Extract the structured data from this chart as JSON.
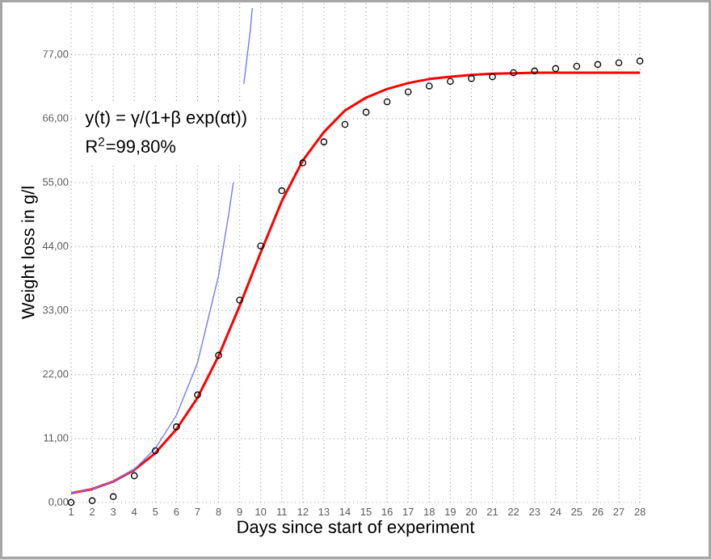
{
  "chart_data": {
    "type": "scatter",
    "xlabel": "Days since start of experiment",
    "ylabel": "Weight loss in g/l",
    "annotations": [
      "y(t) = γ/(1+β exp(αt))",
      "R$^{2}$=99,80%"
    ],
    "series": [
      {
        "type": "scatter",
        "color": "#000000",
        "marker": "circle",
        "x": [
          1,
          2,
          3,
          4,
          5,
          6,
          7,
          8,
          9,
          10,
          11,
          12,
          13,
          14,
          15,
          16,
          17,
          18,
          19,
          20,
          21,
          22,
          23,
          24,
          25,
          26,
          27,
          28
        ],
        "values": [
          0.0,
          0.3,
          1.0,
          4.6,
          8.9,
          13.0,
          18.5,
          25.3,
          34.8,
          44.1,
          53.6,
          58.4,
          62.0,
          65.0,
          67.1,
          68.9,
          70.6,
          71.6,
          72.4,
          72.9,
          73.2,
          73.9,
          74.2,
          74.6,
          75.0,
          75.3,
          75.6,
          75.9
        ]
      },
      {
        "type": "line",
        "color": "#ff0000",
        "x": [
          1,
          2,
          3,
          4,
          5,
          6,
          7,
          8,
          9,
          10,
          11,
          12,
          13,
          14,
          15,
          16,
          17,
          18,
          19,
          20,
          21,
          22,
          23,
          24,
          25,
          26,
          27,
          28
        ],
        "values": [
          1.6,
          2.3,
          3.6,
          5.6,
          8.5,
          12.6,
          18.0,
          25.2,
          33.8,
          43.0,
          51.8,
          58.8,
          63.7,
          67.4,
          69.6,
          71.1,
          72.1,
          72.8,
          73.2,
          73.5,
          73.7,
          73.8,
          73.9,
          73.9,
          73.9,
          73.9,
          73.9,
          73.9
        ]
      },
      {
        "type": "line",
        "color": "#7777ff",
        "x": [
          1,
          2,
          3,
          4,
          5,
          6,
          7,
          8,
          8.5,
          8.7,
          8.9,
          9.2,
          9.5,
          9.6
        ],
        "values": [
          1.6,
          2.3,
          3.6,
          5.7,
          9.3,
          15.0,
          24.0,
          39.0,
          50.0,
          55.0,
          null,
          72.0,
          81.0,
          85.0
        ]
      }
    ],
    "xlim": [
      1,
      28
    ],
    "ylim": [
      0,
      86
    ],
    "xticks": [
      1,
      2,
      3,
      4,
      5,
      6,
      7,
      8,
      9,
      10,
      11,
      12,
      13,
      14,
      15,
      16,
      17,
      18,
      19,
      20,
      21,
      22,
      23,
      24,
      25,
      26,
      27,
      28
    ],
    "yticks": [
      {
        "value": 0,
        "label": "0,00"
      },
      {
        "value": 11,
        "label": "11,00"
      },
      {
        "value": 22,
        "label": "22,00"
      },
      {
        "value": 33,
        "label": "33,00"
      },
      {
        "value": 44,
        "label": "44,00"
      },
      {
        "value": 55,
        "label": "55,00"
      },
      {
        "value": 66,
        "label": "66,00"
      },
      {
        "value": 77,
        "label": "77,00"
      }
    ],
    "grid": true
  }
}
